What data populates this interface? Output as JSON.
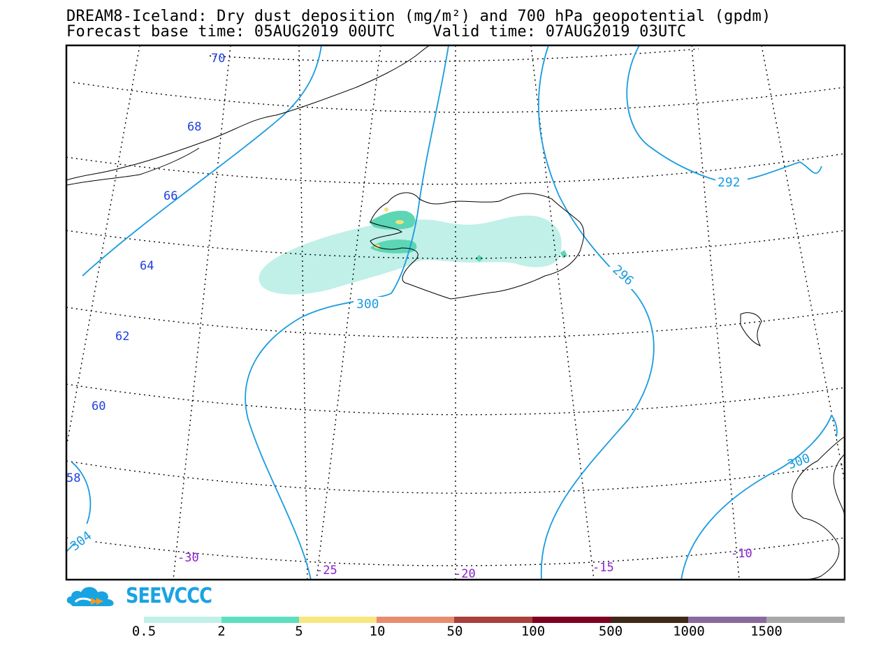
{
  "title": {
    "line1": "DREAM8-Iceland: Dry dust deposition (mg/m²) and 700 hPa geopotential (gpdm)",
    "line2": "Forecast base time: 05AUG2019 00UTC    Valid time: 07AUG2019 03UTC"
  },
  "map": {
    "lat_labels": [
      "70",
      "68",
      "66",
      "64",
      "62",
      "60",
      "58"
    ],
    "lon_labels": [
      "-30",
      "-25",
      "-20",
      "-15",
      "-10"
    ],
    "contour_labels": [
      "292",
      "296",
      "300",
      "304",
      "300"
    ],
    "colors": {
      "contour": "#1a9be0",
      "lat_label": "#1f3fe0",
      "lon_label": "#8a1fcf",
      "graticule": "#000000",
      "coast": "#000000",
      "dust_low": "#c0f0e8",
      "dust_mid": "#5cd6b4",
      "dust_high": "#f2e27a"
    }
  },
  "logo": {
    "text": "SEEVCCC",
    "icon": "cloud-logo-icon"
  },
  "colorbar": {
    "colors": [
      "#c0f0e8",
      "#5ce0c0",
      "#f8e680",
      "#e88c70",
      "#a8403c",
      "#800020",
      "#402818",
      "#8a6a9c",
      "#a8a8a8"
    ],
    "labels": [
      "0.5",
      "2",
      "5",
      "10",
      "50",
      "100",
      "500",
      "1000",
      "1500"
    ]
  }
}
